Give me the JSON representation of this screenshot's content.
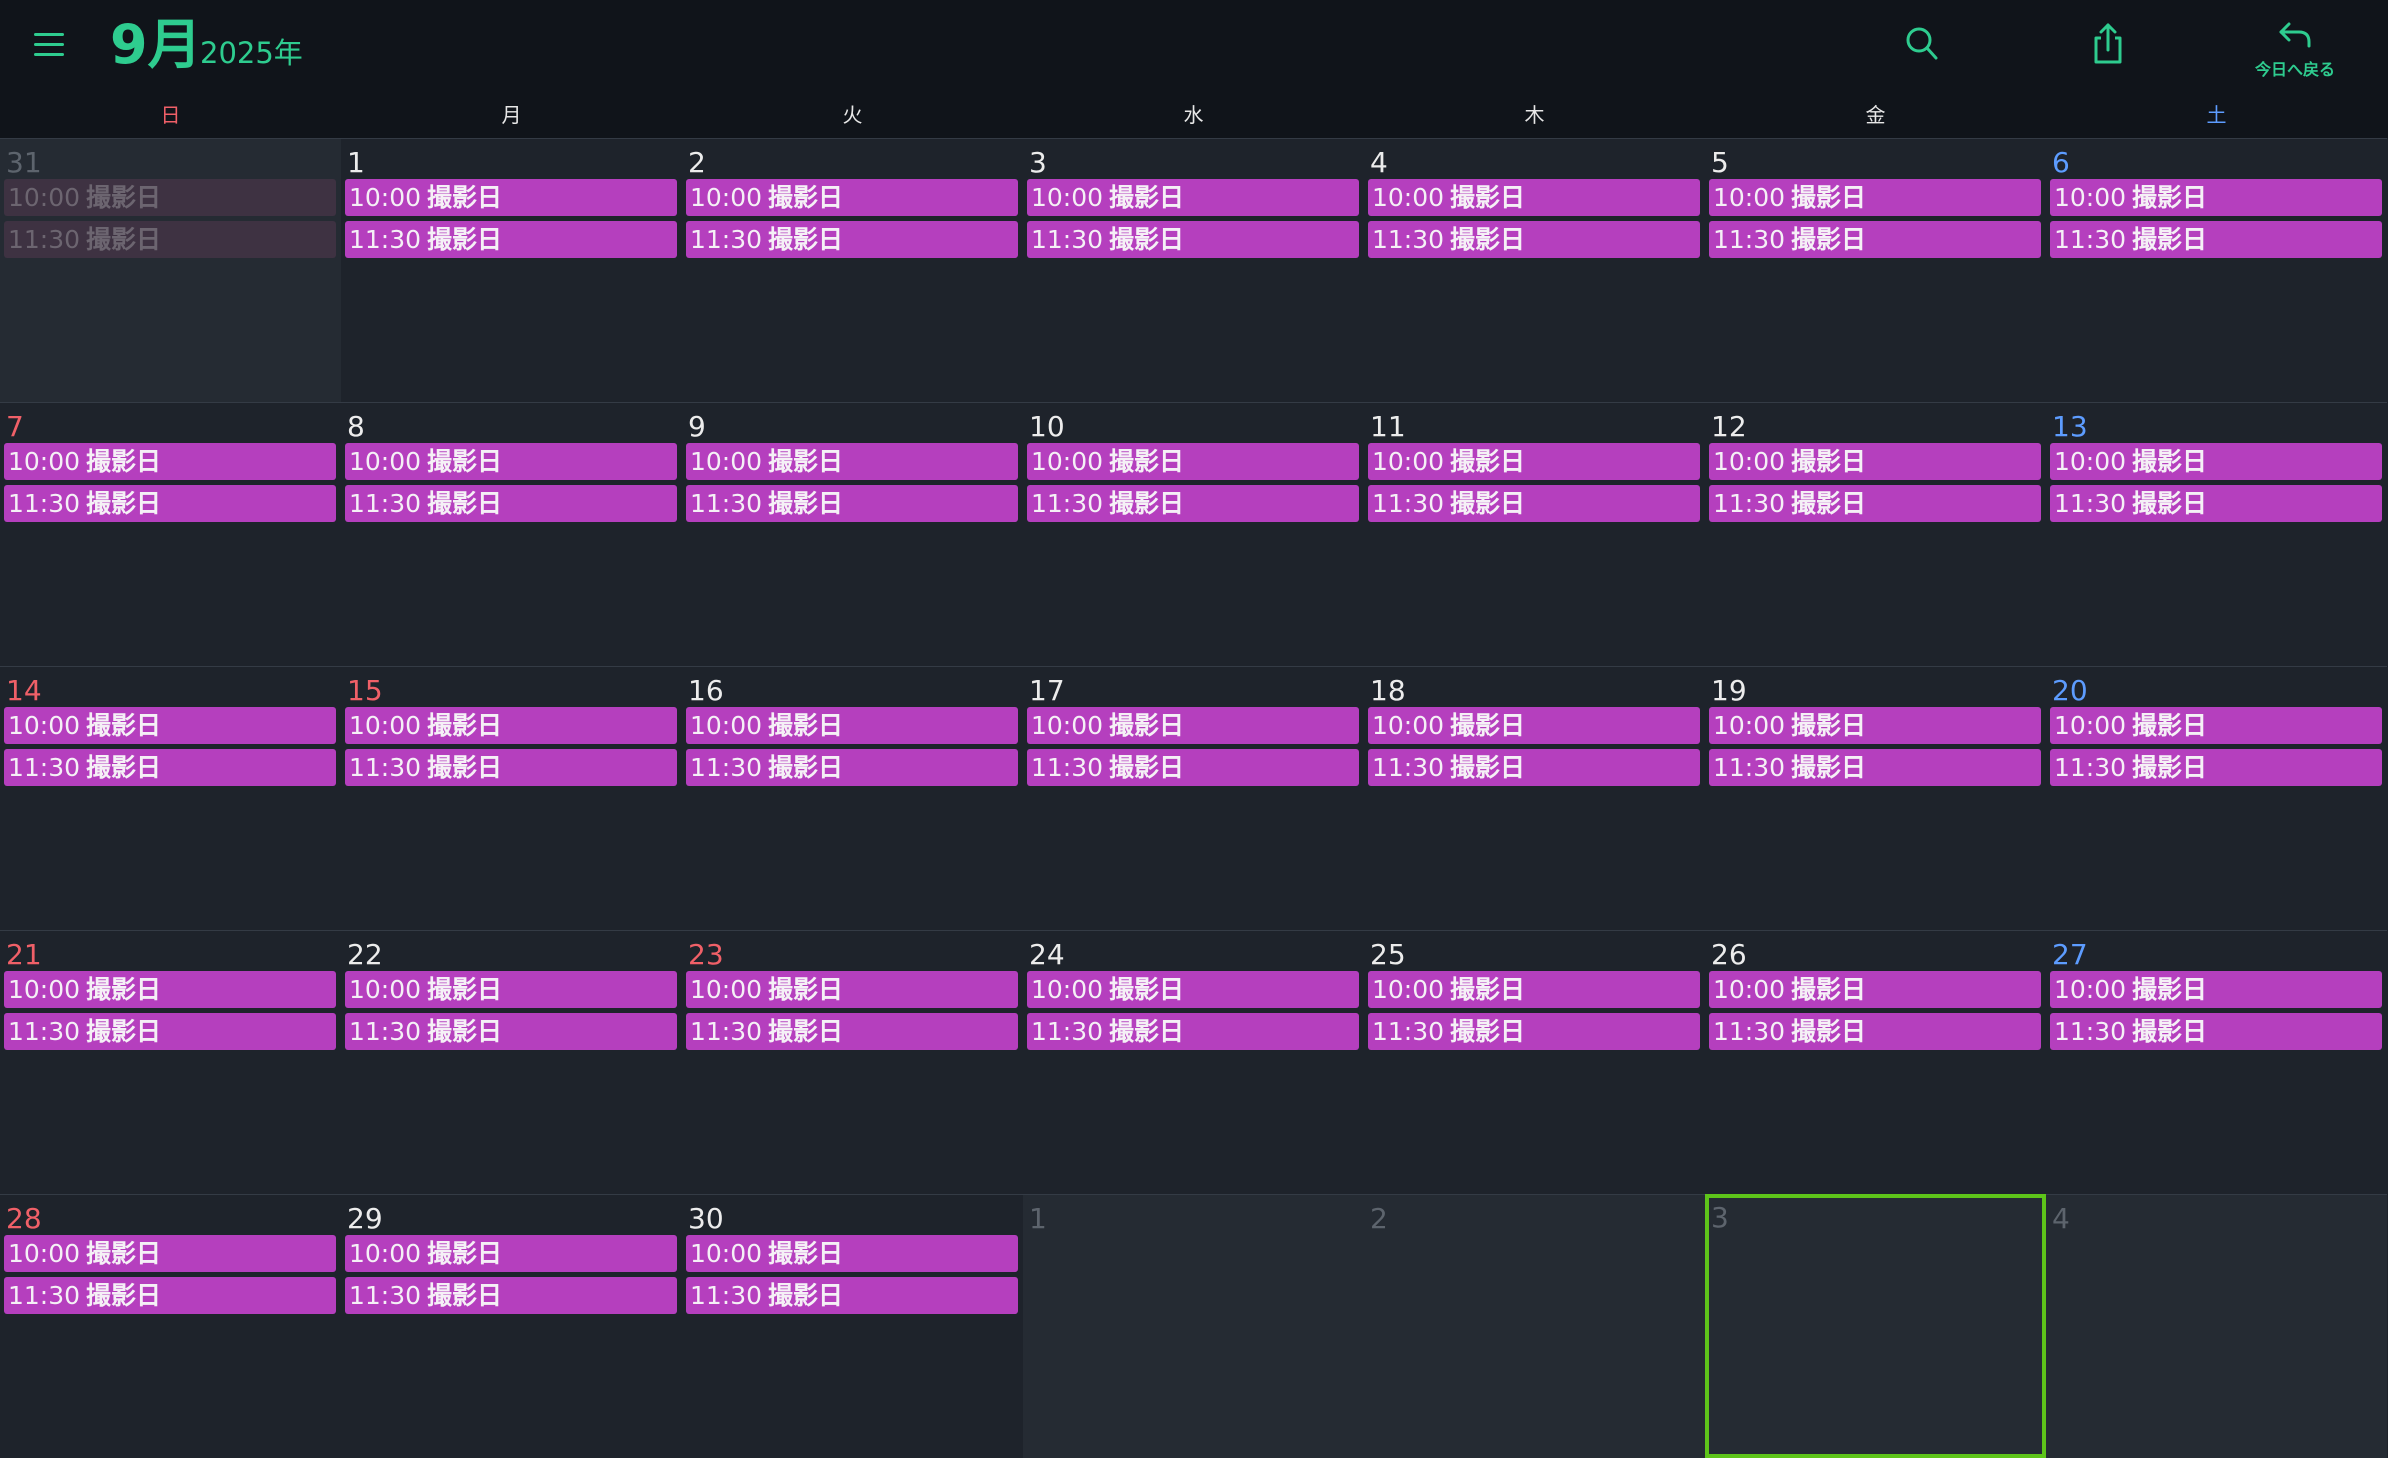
{
  "header": {
    "month": "9月",
    "year": "2025年",
    "today_label": "今日へ戻る",
    "accent_color": "#2ecc8f",
    "icons": [
      "menu-icon",
      "search-icon",
      "share-icon",
      "return-arrow-icon"
    ]
  },
  "weekdays": [
    "日",
    "月",
    "火",
    "水",
    "木",
    "金",
    "土"
  ],
  "colors": {
    "event": "#b53fbe",
    "sunday": "#f06068",
    "saturday": "#5d9cff",
    "selected_border": "#5ec41a"
  },
  "event_titles": {
    "first": {
      "time": "10:00",
      "title": "撮影日"
    },
    "second": {
      "time": "11:30",
      "title": "撮影日"
    }
  },
  "weeks": [
    {
      "days": [
        {
          "day": "31",
          "kind": "prev-month",
          "events": [
            {
              "time": "10:00",
              "title": "撮影日"
            },
            {
              "time": "11:30",
              "title": "撮影日"
            }
          ]
        },
        {
          "day": "1",
          "kind": "weekday",
          "events": [
            {
              "time": "10:00",
              "title": "撮影日"
            },
            {
              "time": "11:30",
              "title": "撮影日"
            }
          ]
        },
        {
          "day": "2",
          "kind": "weekday",
          "events": [
            {
              "time": "10:00",
              "title": "撮影日"
            },
            {
              "time": "11:30",
              "title": "撮影日"
            }
          ]
        },
        {
          "day": "3",
          "kind": "weekday",
          "events": [
            {
              "time": "10:00",
              "title": "撮影日"
            },
            {
              "time": "11:30",
              "title": "撮影日"
            }
          ]
        },
        {
          "day": "4",
          "kind": "weekday",
          "events": [
            {
              "time": "10:00",
              "title": "撮影日"
            },
            {
              "time": "11:30",
              "title": "撮影日"
            }
          ]
        },
        {
          "day": "5",
          "kind": "weekday",
          "events": [
            {
              "time": "10:00",
              "title": "撮影日"
            },
            {
              "time": "11:30",
              "title": "撮影日"
            }
          ]
        },
        {
          "day": "6",
          "kind": "saturday",
          "events": [
            {
              "time": "10:00",
              "title": "撮影日"
            },
            {
              "time": "11:30",
              "title": "撮影日"
            }
          ]
        }
      ]
    },
    {
      "days": [
        {
          "day": "7",
          "kind": "sunday",
          "events": [
            {
              "time": "10:00",
              "title": "撮影日"
            },
            {
              "time": "11:30",
              "title": "撮影日"
            }
          ]
        },
        {
          "day": "8",
          "kind": "weekday",
          "events": [
            {
              "time": "10:00",
              "title": "撮影日"
            },
            {
              "time": "11:30",
              "title": "撮影日"
            }
          ]
        },
        {
          "day": "9",
          "kind": "weekday",
          "events": [
            {
              "time": "10:00",
              "title": "撮影日"
            },
            {
              "time": "11:30",
              "title": "撮影日"
            }
          ]
        },
        {
          "day": "10",
          "kind": "weekday",
          "events": [
            {
              "time": "10:00",
              "title": "撮影日"
            },
            {
              "time": "11:30",
              "title": "撮影日"
            }
          ]
        },
        {
          "day": "11",
          "kind": "weekday",
          "events": [
            {
              "time": "10:00",
              "title": "撮影日"
            },
            {
              "time": "11:30",
              "title": "撮影日"
            }
          ]
        },
        {
          "day": "12",
          "kind": "weekday",
          "events": [
            {
              "time": "10:00",
              "title": "撮影日"
            },
            {
              "time": "11:30",
              "title": "撮影日"
            }
          ]
        },
        {
          "day": "13",
          "kind": "saturday",
          "events": [
            {
              "time": "10:00",
              "title": "撮影日"
            },
            {
              "time": "11:30",
              "title": "撮影日"
            }
          ]
        }
      ]
    },
    {
      "days": [
        {
          "day": "14",
          "kind": "sunday",
          "events": [
            {
              "time": "10:00",
              "title": "撮影日"
            },
            {
              "time": "11:30",
              "title": "撮影日"
            }
          ]
        },
        {
          "day": "15",
          "kind": "holiday",
          "events": [
            {
              "time": "10:00",
              "title": "撮影日"
            },
            {
              "time": "11:30",
              "title": "撮影日"
            }
          ]
        },
        {
          "day": "16",
          "kind": "weekday",
          "events": [
            {
              "time": "10:00",
              "title": "撮影日"
            },
            {
              "time": "11:30",
              "title": "撮影日"
            }
          ]
        },
        {
          "day": "17",
          "kind": "weekday",
          "events": [
            {
              "time": "10:00",
              "title": "撮影日"
            },
            {
              "time": "11:30",
              "title": "撮影日"
            }
          ]
        },
        {
          "day": "18",
          "kind": "weekday",
          "events": [
            {
              "time": "10:00",
              "title": "撮影日"
            },
            {
              "time": "11:30",
              "title": "撮影日"
            }
          ]
        },
        {
          "day": "19",
          "kind": "weekday",
          "events": [
            {
              "time": "10:00",
              "title": "撮影日"
            },
            {
              "time": "11:30",
              "title": "撮影日"
            }
          ]
        },
        {
          "day": "20",
          "kind": "saturday",
          "events": [
            {
              "time": "10:00",
              "title": "撮影日"
            },
            {
              "time": "11:30",
              "title": "撮影日"
            }
          ]
        }
      ]
    },
    {
      "days": [
        {
          "day": "21",
          "kind": "sunday",
          "events": [
            {
              "time": "10:00",
              "title": "撮影日"
            },
            {
              "time": "11:30",
              "title": "撮影日"
            }
          ]
        },
        {
          "day": "22",
          "kind": "weekday",
          "events": [
            {
              "time": "10:00",
              "title": "撮影日"
            },
            {
              "time": "11:30",
              "title": "撮影日"
            }
          ]
        },
        {
          "day": "23",
          "kind": "holiday",
          "events": [
            {
              "time": "10:00",
              "title": "撮影日"
            },
            {
              "time": "11:30",
              "title": "撮影日"
            }
          ]
        },
        {
          "day": "24",
          "kind": "weekday",
          "events": [
            {
              "time": "10:00",
              "title": "撮影日"
            },
            {
              "time": "11:30",
              "title": "撮影日"
            }
          ]
        },
        {
          "day": "25",
          "kind": "weekday",
          "events": [
            {
              "time": "10:00",
              "title": "撮影日"
            },
            {
              "time": "11:30",
              "title": "撮影日"
            }
          ]
        },
        {
          "day": "26",
          "kind": "weekday",
          "events": [
            {
              "time": "10:00",
              "title": "撮影日"
            },
            {
              "time": "11:30",
              "title": "撮影日"
            }
          ]
        },
        {
          "day": "27",
          "kind": "saturday",
          "events": [
            {
              "time": "10:00",
              "title": "撮影日"
            },
            {
              "time": "11:30",
              "title": "撮影日"
            }
          ]
        }
      ]
    },
    {
      "days": [
        {
          "day": "28",
          "kind": "sunday",
          "events": [
            {
              "time": "10:00",
              "title": "撮影日"
            },
            {
              "time": "11:30",
              "title": "撮影日"
            }
          ]
        },
        {
          "day": "29",
          "kind": "weekday",
          "events": [
            {
              "time": "10:00",
              "title": "撮影日"
            },
            {
              "time": "11:30",
              "title": "撮影日"
            }
          ]
        },
        {
          "day": "30",
          "kind": "weekday",
          "events": [
            {
              "time": "10:00",
              "title": "撮影日"
            },
            {
              "time": "11:30",
              "title": "撮影日"
            }
          ]
        },
        {
          "day": "1",
          "kind": "next-month",
          "events": []
        },
        {
          "day": "2",
          "kind": "next-month",
          "events": []
        },
        {
          "day": "3",
          "kind": "next-month-selected",
          "events": []
        },
        {
          "day": "4",
          "kind": "next-month",
          "events": []
        }
      ]
    }
  ]
}
